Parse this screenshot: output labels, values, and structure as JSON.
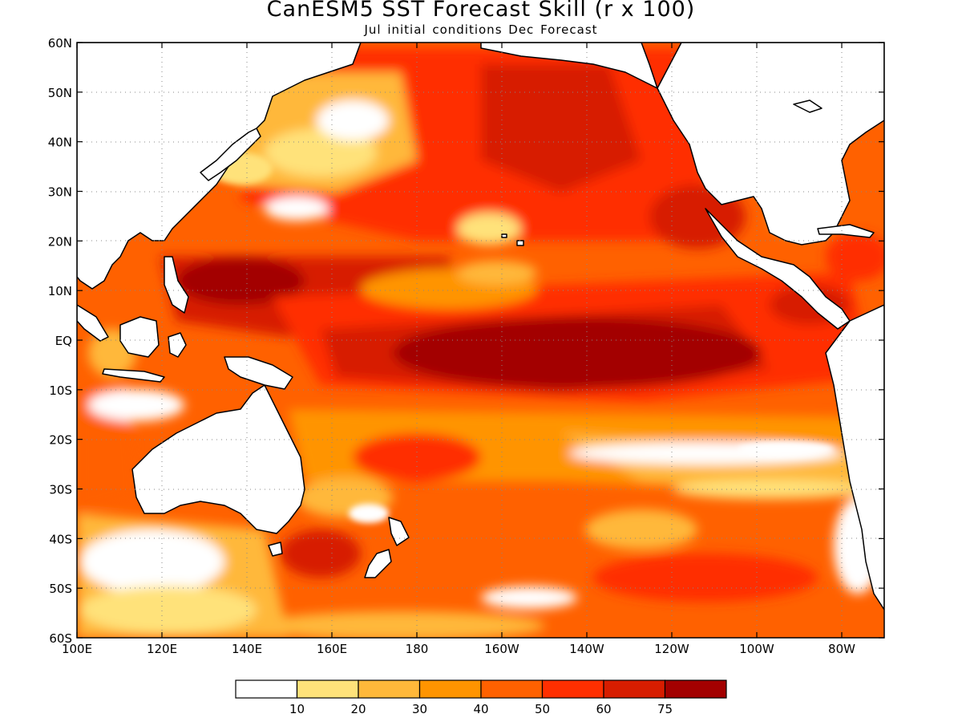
{
  "title": "CanESM5 SST Forecast Skill (r x 100)",
  "subtitle": "Jul initial conditions  Dec Forecast",
  "map": {
    "projection": "lat-lon",
    "lon_range": [
      100,
      290
    ],
    "lat_range": [
      -60,
      60
    ],
    "grid": true,
    "x_ticks": [
      "100E",
      "120E",
      "140E",
      "160E",
      "180",
      "160W",
      "140W",
      "120W",
      "100W",
      "80W"
    ],
    "y_ticks": [
      "60N",
      "50N",
      "40N",
      "30N",
      "20N",
      "10N",
      "EQ",
      "10S",
      "20S",
      "30S",
      "40S",
      "50S",
      "60S"
    ],
    "field": "SST forecast skill, correlation x 100",
    "high_skill_region": "central-eastern equatorial Pacific",
    "low_skill_regions": [
      "Southern Ocean",
      "subtropical South Pacific band",
      "western Pacific marginal seas"
    ]
  },
  "colorbar": {
    "labels": [
      "10",
      "20",
      "30",
      "40",
      "50",
      "60",
      "75"
    ],
    "colors": [
      "#ffffff",
      "#ffe27a",
      "#ffb83a",
      "#ff9400",
      "#ff6100",
      "#ff2f00",
      "#d71d00",
      "#a30000"
    ]
  }
}
